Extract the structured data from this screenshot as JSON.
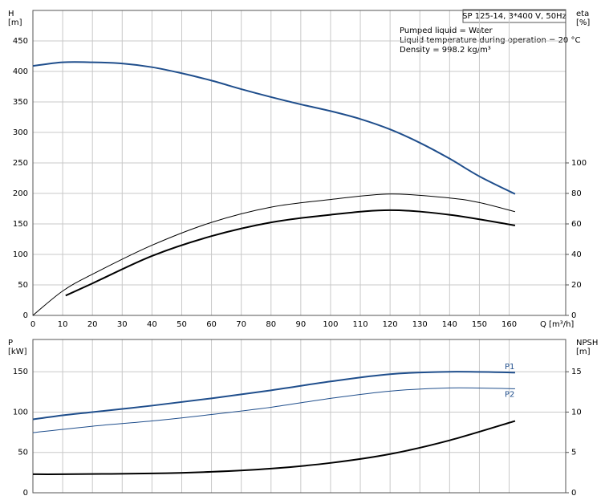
{
  "chart_data": [
    {
      "type": "line",
      "title": "SP 125-14, 3*400 V, 50Hz",
      "annotations": [
        "Pumped liquid = Water",
        "Liquid temperature during operation = 20 °C",
        "Density = 998.2 kg/m³"
      ],
      "ylabel": [
        "H",
        "[m]"
      ],
      "y2label": [
        "eta",
        "[%]"
      ],
      "xlabel": "Q [m³/h]",
      "xlim": [
        0,
        179
      ],
      "xticks": [
        0,
        10,
        20,
        30,
        40,
        50,
        60,
        70,
        80,
        90,
        100,
        110,
        120,
        130,
        140,
        150,
        160
      ],
      "ylim": [
        0,
        500
      ],
      "yticks": [
        0,
        50,
        100,
        150,
        200,
        250,
        300,
        350,
        400,
        450
      ],
      "y2lim": [
        0,
        200
      ],
      "y2ticks": [
        0,
        20,
        40,
        60,
        80,
        100
      ],
      "grid": true,
      "series": [
        {
          "color": "#1f4e8c",
          "width": 2,
          "x": [
            0,
            10,
            20,
            30,
            40,
            50,
            60,
            70,
            80,
            90,
            100,
            110,
            120,
            130,
            140,
            150,
            162
          ],
          "values": [
            409,
            415,
            415,
            413,
            407,
            397,
            385,
            371,
            358,
            346,
            335,
            322,
            305,
            283,
            257,
            228,
            199
          ]
        },
        {
          "color": "#000000",
          "width": 1,
          "axis": "y2",
          "x": [
            0,
            10,
            20,
            40,
            60,
            80,
            100,
            120,
            140,
            150,
            162
          ],
          "values": [
            0,
            16,
            27,
            46,
            61,
            71,
            76,
            79.6,
            77,
            74,
            68
          ]
        },
        {
          "color": "#000000",
          "width": 2,
          "axis": "y2",
          "x": [
            11,
            20,
            40,
            60,
            80,
            100,
            120,
            140,
            162
          ],
          "values": [
            13,
            21,
            39,
            52,
            61,
            66,
            69,
            66,
            59
          ]
        }
      ]
    },
    {
      "type": "line",
      "ylabel": [
        "P",
        "[kW]"
      ],
      "y2label": [
        "NPSH",
        "[m]"
      ],
      "xlim": [
        0,
        179
      ],
      "ylim": [
        0,
        190
      ],
      "yticks": [
        0,
        50,
        100,
        150
      ],
      "y2lim": [
        0,
        19
      ],
      "y2ticks": [
        0,
        5,
        10,
        15
      ],
      "grid": true,
      "series": [
        {
          "name": "P1",
          "color": "#1f4e8c",
          "width": 2,
          "x": [
            0,
            10,
            20,
            40,
            60,
            80,
            100,
            120,
            140,
            162
          ],
          "values": [
            91,
            96,
            100,
            108,
            117,
            127,
            138,
            147,
            150,
            149
          ]
        },
        {
          "name": "P2",
          "color": "#1f4e8c",
          "width": 1,
          "x": [
            0,
            20,
            40,
            60,
            80,
            100,
            120,
            140,
            162
          ],
          "values": [
            74.5,
            82.5,
            89,
            97,
            106,
            117,
            126,
            130,
            129
          ]
        },
        {
          "color": "#000000",
          "width": 2,
          "axis": "y2",
          "x": [
            0,
            10,
            40,
            60,
            80,
            100,
            120,
            140,
            162
          ],
          "values": [
            2.3,
            2.3,
            2.4,
            2.6,
            3.0,
            3.7,
            4.8,
            6.5,
            8.9
          ]
        }
      ]
    }
  ]
}
